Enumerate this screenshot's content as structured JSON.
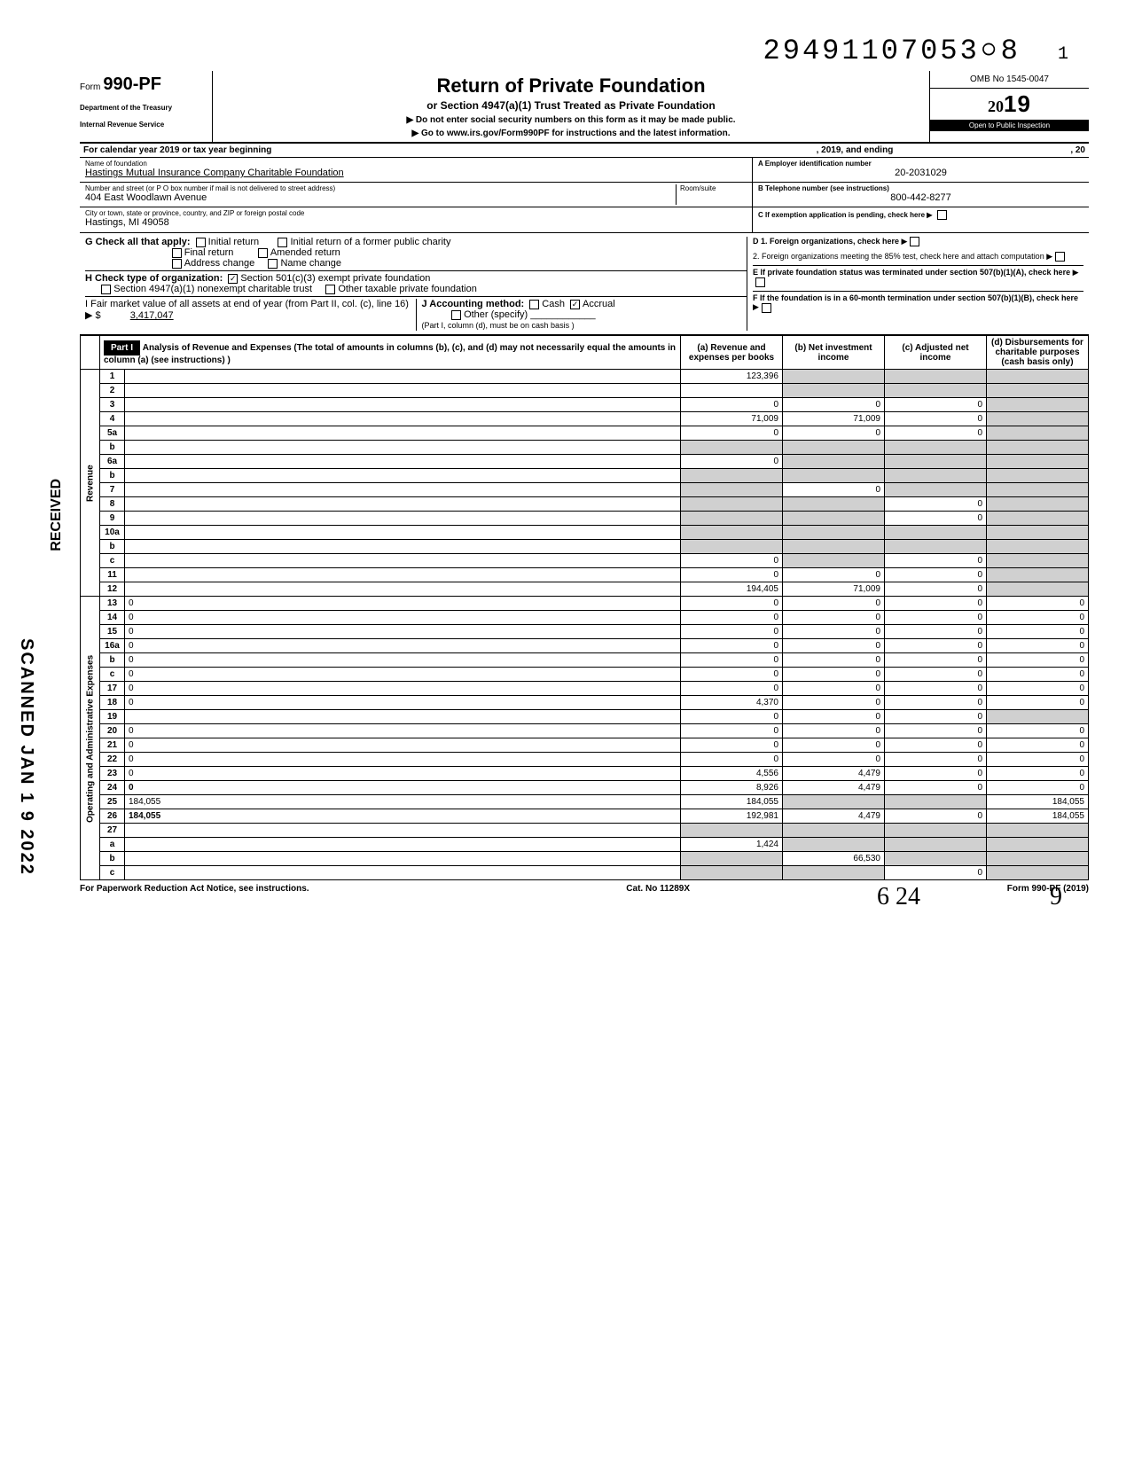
{
  "doc_number": "29491107053০8",
  "doc_number_sub": "1",
  "form": {
    "form_label": "Form",
    "form_number": "990-PF",
    "dept1": "Department of the Treasury",
    "dept2": "Internal Revenue Service",
    "title": "Return of Private Foundation",
    "subtitle": "or Section 4947(a)(1) Trust Treated as Private Foundation",
    "note1": "▶ Do not enter social security numbers on this form as it may be made public.",
    "note2": "▶ Go to www.irs.gov/Form990PF for instructions and the latest information.",
    "omb": "OMB No 1545-0047",
    "year_prefix": "20",
    "year": "19",
    "open_inspection": "Open to Public Inspection"
  },
  "cal_year": {
    "left": "For calendar year 2019 or tax year beginning",
    "mid": ", 2019, and ending",
    "right": ", 20"
  },
  "foundation": {
    "name_label": "Name of foundation",
    "name": "Hastings Mutual Insurance Company Charitable Foundation",
    "addr_label": "Number and street (or P O  box number if mail is not delivered to street address)",
    "addr": "404 East Woodlawn Avenue",
    "city_label": "City or town, state or province, country, and ZIP or foreign postal code",
    "city": "Hastings, MI 49058",
    "room_label": "Room/suite",
    "ein_label": "A  Employer identification number",
    "ein": "20-2031029",
    "phone_label": "B  Telephone number (see instructions)",
    "phone": "800-442-8277",
    "c_label": "C  If exemption application is pending, check here ▶"
  },
  "section_g": {
    "label": "G   Check all that apply:",
    "opts": [
      "Initial return",
      "Initial return of a former public charity",
      "Final return",
      "Amended return",
      "Address change",
      "Name change"
    ]
  },
  "section_h": {
    "label": "H   Check type of organization:",
    "opt1": "Section 501(c)(3) exempt private foundation",
    "opt2": "Section 4947(a)(1) nonexempt charitable trust",
    "opt3": "Other taxable private foundation"
  },
  "section_d": {
    "d1": "D  1. Foreign organizations, check here",
    "d2": "2. Foreign organizations meeting the 85% test, check here and attach computation",
    "e": "E  If private foundation status was terminated under section 507(b)(1)(A), check here",
    "f": "F  If the foundation is in a 60-month termination under section 507(b)(1)(B), check here"
  },
  "section_i": {
    "label": "I    Fair market value of all assets at end of year  (from Part II, col. (c), line 16) ▶ $",
    "value": "3,417,047"
  },
  "section_j": {
    "label": "J   Accounting method:",
    "cash": "Cash",
    "accrual": "Accrual",
    "other": "Other (specify)",
    "note": "(Part I, column (d), must be on cash basis )"
  },
  "part1": {
    "header": "Part I",
    "title": "Analysis of Revenue and Expenses (The total of amounts in columns (b), (c), and (d) may not necessarily equal the amounts in column (a) (see instructions) )",
    "col_a": "(a) Revenue and expenses per books",
    "col_b": "(b) Net investment income",
    "col_c": "(c) Adjusted net income",
    "col_d": "(d) Disbursements for charitable purposes (cash basis only)"
  },
  "revenue_label": "Revenue",
  "expenses_label": "Operating and Administrative Expenses",
  "rows": [
    {
      "n": "1",
      "d": "",
      "a": "123,396",
      "b": "",
      "c": "",
      "bShade": true,
      "cShade": true,
      "dShade": true
    },
    {
      "n": "2",
      "d": "",
      "a": "",
      "b": "",
      "c": "",
      "bShade": true,
      "cShade": true,
      "dShade": true
    },
    {
      "n": "3",
      "d": "",
      "a": "0",
      "b": "0",
      "c": "0",
      "dShade": true
    },
    {
      "n": "4",
      "d": "",
      "a": "71,009",
      "b": "71,009",
      "c": "0",
      "dShade": true
    },
    {
      "n": "5a",
      "d": "",
      "a": "0",
      "b": "0",
      "c": "0",
      "dShade": true
    },
    {
      "n": "b",
      "d": "",
      "a": "",
      "b": "",
      "c": "",
      "aShade": true,
      "bShade": true,
      "cShade": true,
      "dShade": true
    },
    {
      "n": "6a",
      "d": "",
      "a": "0",
      "b": "",
      "c": "",
      "bShade": true,
      "cShade": true,
      "dShade": true
    },
    {
      "n": "b",
      "d": "",
      "a": "",
      "b": "",
      "c": "",
      "aShade": true,
      "bShade": true,
      "cShade": true,
      "dShade": true
    },
    {
      "n": "7",
      "d": "",
      "a": "",
      "b": "0",
      "c": "",
      "aShade": true,
      "cShade": true,
      "dShade": true
    },
    {
      "n": "8",
      "d": "",
      "a": "",
      "b": "",
      "c": "0",
      "aShade": true,
      "bShade": true,
      "dShade": true
    },
    {
      "n": "9",
      "d": "",
      "a": "",
      "b": "",
      "c": "0",
      "aShade": true,
      "bShade": true,
      "dShade": true
    },
    {
      "n": "10a",
      "d": "",
      "a": "",
      "b": "",
      "c": "",
      "aShade": true,
      "bShade": true,
      "cShade": true,
      "dShade": true
    },
    {
      "n": "b",
      "d": "",
      "a": "",
      "b": "",
      "c": "",
      "aShade": true,
      "bShade": true,
      "cShade": true,
      "dShade": true
    },
    {
      "n": "c",
      "d": "",
      "a": "0",
      "b": "",
      "c": "0",
      "bShade": true,
      "dShade": true
    },
    {
      "n": "11",
      "d": "",
      "a": "0",
      "b": "0",
      "c": "0",
      "dShade": true
    },
    {
      "n": "12",
      "d": "",
      "a": "194,405",
      "b": "71,009",
      "c": "0",
      "bold": true,
      "dShade": true
    },
    {
      "n": "13",
      "d": "0",
      "a": "0",
      "b": "0",
      "c": "0"
    },
    {
      "n": "14",
      "d": "0",
      "a": "0",
      "b": "0",
      "c": "0"
    },
    {
      "n": "15",
      "d": "0",
      "a": "0",
      "b": "0",
      "c": "0"
    },
    {
      "n": "16a",
      "d": "0",
      "a": "0",
      "b": "0",
      "c": "0"
    },
    {
      "n": "b",
      "d": "0",
      "a": "0",
      "b": "0",
      "c": "0"
    },
    {
      "n": "c",
      "d": "0",
      "a": "0",
      "b": "0",
      "c": "0"
    },
    {
      "n": "17",
      "d": "0",
      "a": "0",
      "b": "0",
      "c": "0"
    },
    {
      "n": "18",
      "d": "0",
      "a": "4,370",
      "b": "0",
      "c": "0"
    },
    {
      "n": "19",
      "d": "",
      "a": "0",
      "b": "0",
      "c": "0",
      "dShade": true
    },
    {
      "n": "20",
      "d": "0",
      "a": "0",
      "b": "0",
      "c": "0"
    },
    {
      "n": "21",
      "d": "0",
      "a": "0",
      "b": "0",
      "c": "0"
    },
    {
      "n": "22",
      "d": "0",
      "a": "0",
      "b": "0",
      "c": "0"
    },
    {
      "n": "23",
      "d": "0",
      "a": "4,556",
      "b": "4,479",
      "c": "0"
    },
    {
      "n": "24",
      "d": "0",
      "a": "8,926",
      "b": "4,479",
      "c": "0",
      "bold": true
    },
    {
      "n": "25",
      "d": "184,055",
      "a": "184,055",
      "b": "",
      "c": "",
      "bShade": true,
      "cShade": true
    },
    {
      "n": "26",
      "d": "184,055",
      "a": "192,981",
      "b": "4,479",
      "c": "0",
      "bold": true
    },
    {
      "n": "27",
      "d": "",
      "a": "",
      "b": "",
      "c": "",
      "aShade": true,
      "bShade": true,
      "cShade": true,
      "dShade": true
    },
    {
      "n": "a",
      "d": "",
      "a": "1,424",
      "b": "",
      "c": "",
      "bShade": true,
      "cShade": true,
      "dShade": true,
      "bold": true
    },
    {
      "n": "b",
      "d": "",
      "a": "",
      "b": "66,530",
      "c": "",
      "aShade": true,
      "cShade": true,
      "dShade": true,
      "bold": true
    },
    {
      "n": "c",
      "d": "",
      "a": "",
      "b": "",
      "c": "0",
      "aShade": true,
      "bShade": true,
      "dShade": true,
      "bold": true
    }
  ],
  "footer": {
    "left": "For Paperwork Reduction Act Notice, see instructions.",
    "mid": "Cat. No 11289X",
    "right": "Form 990-PF (2019)"
  },
  "stamps": {
    "scanned": "SCANNED JAN 1 9 2022",
    "received": "RECEIVED"
  },
  "handwritten": "6 24",
  "handwritten2": "9"
}
